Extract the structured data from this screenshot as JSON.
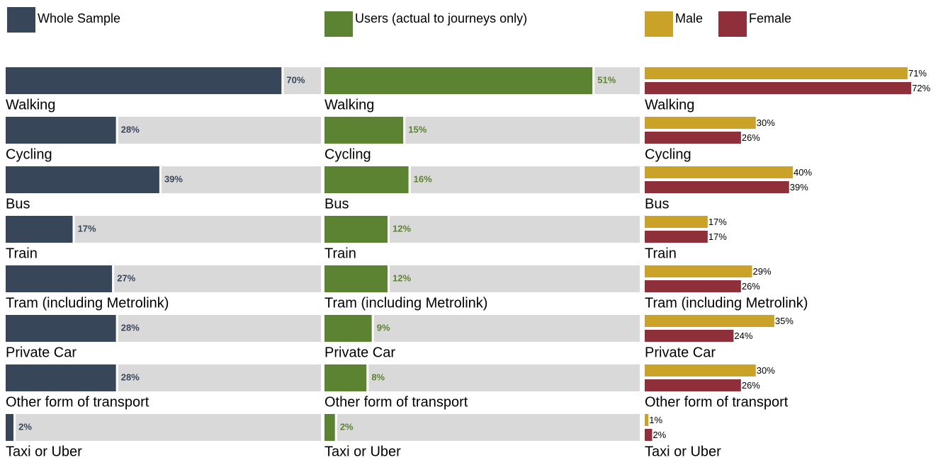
{
  "chart_data": [
    {
      "type": "bar",
      "orientation": "horizontal",
      "categories": [
        "Walking",
        "Cycling",
        "Bus",
        "Train",
        "Tram (including Metrolink)",
        "Private Car",
        "Other form of transport",
        "Taxi or Uber"
      ],
      "series": [
        {
          "name": "Whole Sample",
          "color": "#38465a",
          "values": [
            70,
            28,
            39,
            17,
            27,
            28,
            28,
            2
          ],
          "value_labels": [
            "70%",
            "28%",
            "39%",
            "17%",
            "27%",
            "28%",
            "28%",
            "2%"
          ]
        }
      ],
      "xlim": [
        0,
        80
      ],
      "track_color": "#d9d9d9"
    },
    {
      "type": "bar",
      "orientation": "horizontal",
      "categories": [
        "Walking",
        "Cycling",
        "Bus",
        "Train",
        "Tram (including Metrolink)",
        "Private Car",
        "Other form of transport",
        "Taxi or Uber"
      ],
      "series": [
        {
          "name": "Users (actual to journeys only)",
          "color": "#5b8331",
          "values": [
            51,
            15,
            16,
            12,
            12,
            9,
            8,
            2
          ],
          "value_labels": [
            "51%",
            "15%",
            "16%",
            "12%",
            "12%",
            "9%",
            "8%",
            "2%"
          ]
        }
      ],
      "xlim": [
        0,
        60
      ],
      "track_color": "#d9d9d9"
    },
    {
      "type": "bar",
      "orientation": "horizontal",
      "categories": [
        "Walking",
        "Cycling",
        "Bus",
        "Train",
        "Tram (including Metrolink)",
        "Private Car",
        "Other form of transport",
        "Taxi or Uber"
      ],
      "series": [
        {
          "name": "Male",
          "color": "#c9a227",
          "values": [
            71,
            30,
            40,
            17,
            29,
            35,
            30,
            1
          ],
          "value_labels": [
            "71%",
            "30%",
            "40%",
            "17%",
            "29%",
            "35%",
            "30%",
            "1%"
          ]
        },
        {
          "name": "Female",
          "color": "#8e2f3a",
          "values": [
            72,
            26,
            39,
            17,
            26,
            24,
            26,
            2
          ],
          "value_labels": [
            "72%",
            "26%",
            "39%",
            "17%",
            "26%",
            "24%",
            "26%",
            "2%"
          ]
        }
      ],
      "xlim": [
        0,
        80
      ]
    }
  ]
}
